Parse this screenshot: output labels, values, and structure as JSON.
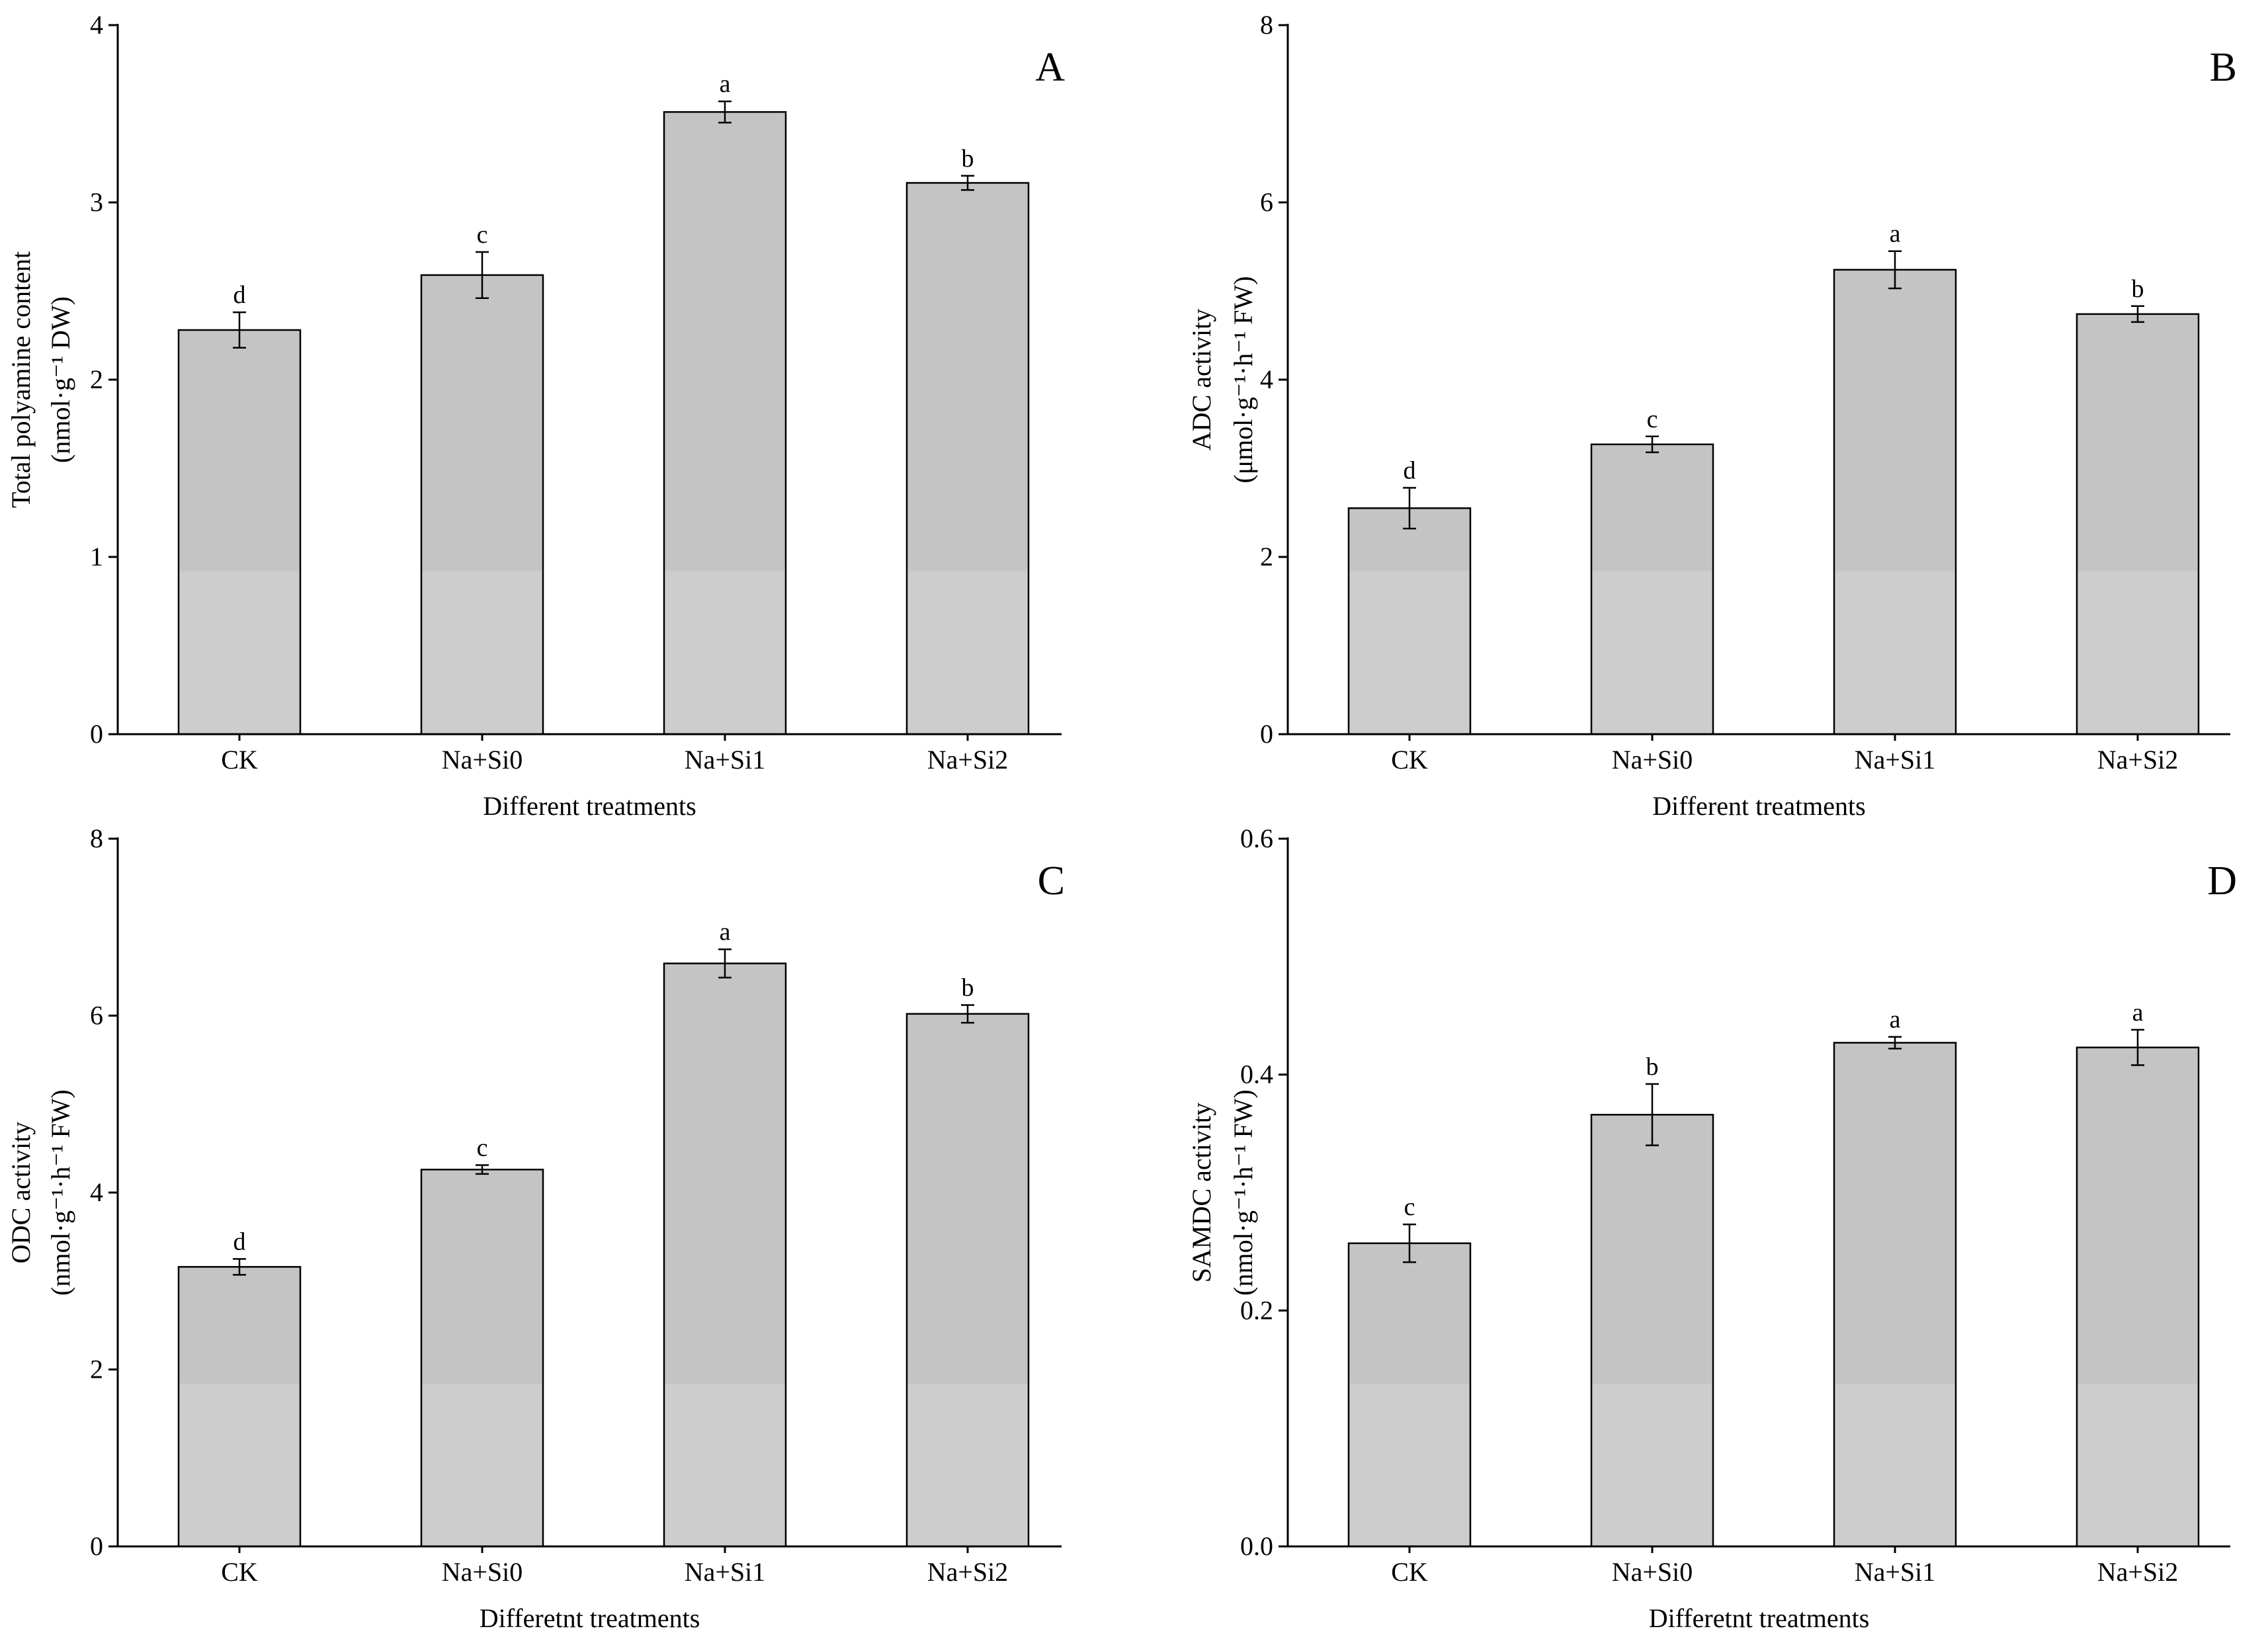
{
  "chart_data": [
    {
      "panel": "A",
      "type": "bar",
      "categories": [
        "CK",
        "Na+Si0",
        "Na+Si1",
        "Na+Si2"
      ],
      "values": [
        2.28,
        2.59,
        3.51,
        3.11
      ],
      "errors": [
        0.1,
        0.13,
        0.06,
        0.04
      ],
      "significance": [
        "d",
        "c",
        "a",
        "b"
      ],
      "xlabel": "Different treatments",
      "ylabel_line1": "Total polyamine content",
      "ylabel_unit": "(nmol·g⁻¹ DW)",
      "ylim": [
        0,
        4
      ],
      "ticks": [
        0,
        1,
        2,
        3,
        4
      ],
      "tick_labels": [
        "0",
        "1",
        "2",
        "3",
        "4"
      ]
    },
    {
      "panel": "B",
      "type": "bar",
      "categories": [
        "CK",
        "Na+Si0",
        "Na+Si1",
        "Na+Si2"
      ],
      "values": [
        2.55,
        3.27,
        5.24,
        4.74
      ],
      "errors": [
        0.23,
        0.09,
        0.21,
        0.09
      ],
      "significance": [
        "d",
        "c",
        "a",
        "b"
      ],
      "xlabel": "Different treatments",
      "ylabel_line1": "ADC activity",
      "ylabel_unit": "(μmol·g⁻¹·h⁻¹ FW)",
      "ylim": [
        0,
        8
      ],
      "ticks": [
        0,
        2,
        4,
        6,
        8
      ],
      "tick_labels": [
        "0",
        "2",
        "4",
        "6",
        "8"
      ]
    },
    {
      "panel": "C",
      "type": "bar",
      "categories": [
        "CK",
        "Na+Si0",
        "Na+Si1",
        "Na+Si2"
      ],
      "values": [
        3.16,
        4.26,
        6.59,
        6.02
      ],
      "errors": [
        0.09,
        0.05,
        0.16,
        0.1
      ],
      "significance": [
        "d",
        "c",
        "a",
        "b"
      ],
      "xlabel": "Differetnt treatments",
      "ylabel_line1": "ODC activity",
      "ylabel_unit": "(nmol·g⁻¹·h⁻¹ FW)",
      "ylim": [
        0,
        8
      ],
      "ticks": [
        0,
        2,
        4,
        6,
        8
      ],
      "tick_labels": [
        "0",
        "2",
        "4",
        "6",
        "8"
      ]
    },
    {
      "panel": "D",
      "type": "bar",
      "categories": [
        "CK",
        "Na+Si0",
        "Na+Si1",
        "Na+Si2"
      ],
      "values": [
        0.257,
        0.366,
        0.427,
        0.423
      ],
      "errors": [
        0.016,
        0.026,
        0.005,
        0.015
      ],
      "significance": [
        "c",
        "b",
        "a",
        "a"
      ],
      "xlabel": "Differetnt treatments",
      "ylabel_line1": "SAMDC activity",
      "ylabel_unit": "(nmol·g⁻¹·h⁻¹ FW)",
      "ylim": [
        0,
        0.6
      ],
      "ticks": [
        0,
        0.2,
        0.4,
        0.6
      ],
      "tick_labels": [
        "0.0",
        "0.2",
        "0.4",
        "0.6"
      ]
    }
  ],
  "colors": {
    "bar_fill": "#c4c4c4",
    "bar_fill_lower": "#cdcdcd",
    "axis": "#000000"
  }
}
